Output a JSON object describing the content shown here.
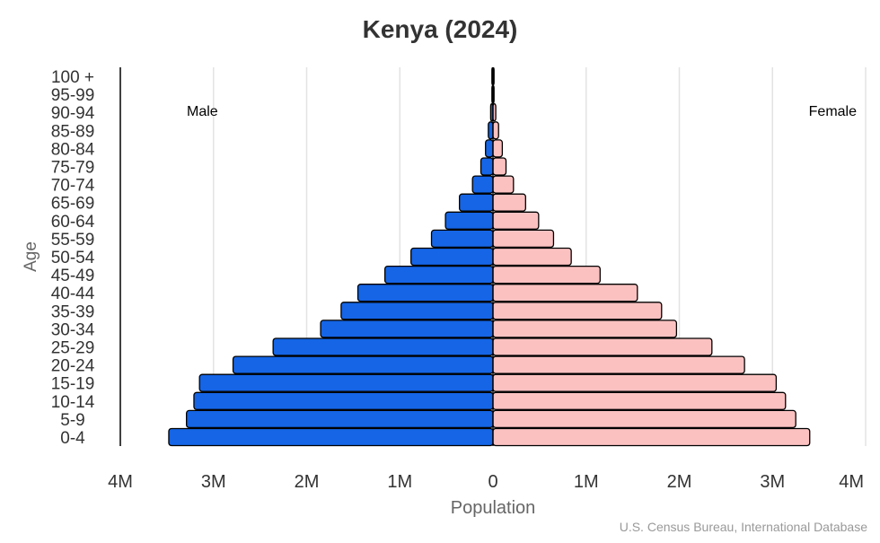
{
  "chart_data": {
    "type": "bar",
    "orientation": "horizontal",
    "subtype": "population-pyramid",
    "title": "Kenya (2024)",
    "xlabel": "Population",
    "ylabel": "Age",
    "source": "U.S. Census Bureau, International Database",
    "xlim": [
      -4000000,
      4000000
    ],
    "x_ticks": [
      "4M",
      "3M",
      "2M",
      "1M",
      "0",
      "1M",
      "2M",
      "3M",
      "4M"
    ],
    "grid": true,
    "categories": [
      "0-4",
      "5-9",
      "10-14",
      "15-19",
      "20-24",
      "25-29",
      "30-34",
      "35-39",
      "40-44",
      "45-49",
      "50-54",
      "55-59",
      "60-64",
      "65-69",
      "70-74",
      "75-79",
      "80-84",
      "85-89",
      "90-94",
      "95-99",
      "100 +"
    ],
    "series": [
      {
        "name": "Male",
        "color": "#1565e6",
        "label_position": "top-left",
        "values": [
          3480000,
          3290000,
          3210000,
          3150000,
          2790000,
          2360000,
          1850000,
          1630000,
          1450000,
          1160000,
          880000,
          660000,
          510000,
          360000,
          220000,
          130000,
          80000,
          50000,
          25000,
          6000,
          1000
        ]
      },
      {
        "name": "Female",
        "color": "#fbc1c1",
        "label_position": "top-right",
        "values": [
          3400000,
          3250000,
          3140000,
          3040000,
          2700000,
          2350000,
          1970000,
          1810000,
          1550000,
          1150000,
          840000,
          650000,
          490000,
          350000,
          220000,
          140000,
          100000,
          60000,
          30000,
          8000,
          1500
        ]
      }
    ]
  }
}
